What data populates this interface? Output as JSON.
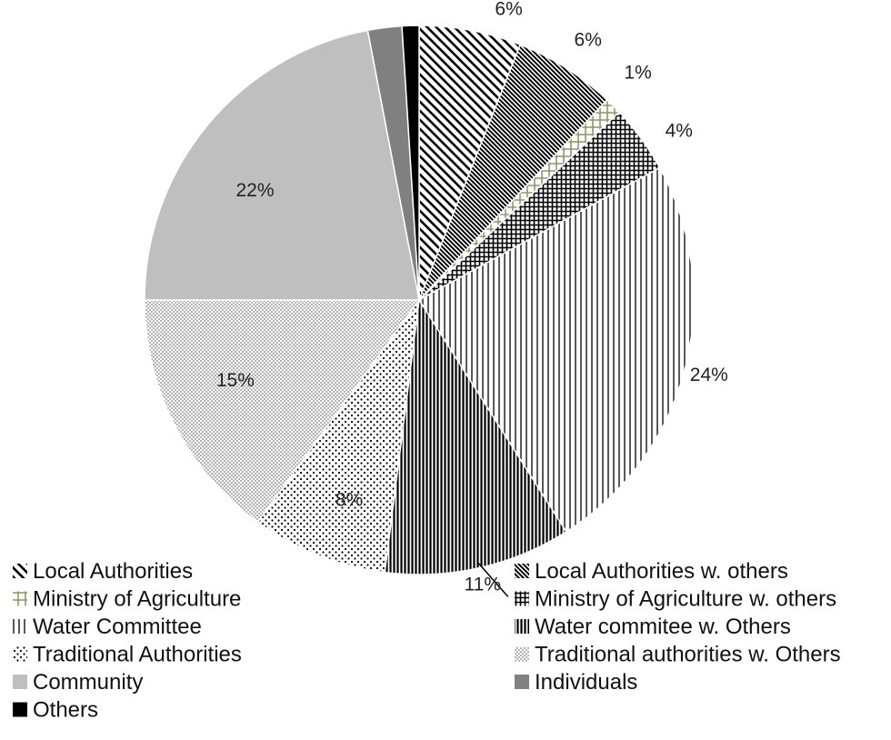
{
  "chart_data": {
    "type": "pie",
    "title": "",
    "slices": [
      {
        "name": "Local Authorities",
        "value": 6,
        "label": "6%",
        "pattern": "diag-left",
        "color": "#000000"
      },
      {
        "name": "Local Authorities w. others",
        "value": 6,
        "label": "6%",
        "pattern": "diag-dense",
        "color": "#000000"
      },
      {
        "name": "Ministry of Agriculture",
        "value": 1,
        "label": "1%",
        "pattern": "hash-light",
        "color": "#8a9a6a"
      },
      {
        "name": "Ministry of Agriculture w. others",
        "value": 4,
        "label": "4%",
        "pattern": "hash-dense",
        "color": "#000000"
      },
      {
        "name": "Water Committee",
        "value": 24,
        "label": "24%",
        "pattern": "vlines-thin",
        "color": "#000000"
      },
      {
        "name": "Water commitee w. Others",
        "value": 11,
        "label": "11%",
        "pattern": "vlines-dense",
        "color": "#000000"
      },
      {
        "name": "Traditional Authorities",
        "value": 8,
        "label": "8%",
        "pattern": "dots-sparse",
        "color": "#000000"
      },
      {
        "name": "Traditional authorities w. Others",
        "value": 15,
        "label": "15%",
        "pattern": "dots-dense",
        "color": "#888888"
      },
      {
        "name": "Community",
        "value": 22,
        "label": "22%",
        "pattern": "solid",
        "color": "#bfbfbf"
      },
      {
        "name": "Individuals",
        "value": 2,
        "label": "2%",
        "pattern": "solid",
        "color": "#808080"
      },
      {
        "name": "Others",
        "value": 1,
        "label": "1%",
        "pattern": "solid",
        "color": "#000000"
      }
    ],
    "legend": {
      "placement": "bottom",
      "columns": 2,
      "items": [
        "Local Authorities",
        "Local Authorities w. others",
        "Ministry of Agriculture",
        "Ministry of Agriculture w. others",
        "Water Committee",
        "Water commitee w. Others",
        "Traditional Authorities",
        "Traditional authorities w. Others",
        "Community",
        "Individuals",
        "Others"
      ]
    }
  }
}
